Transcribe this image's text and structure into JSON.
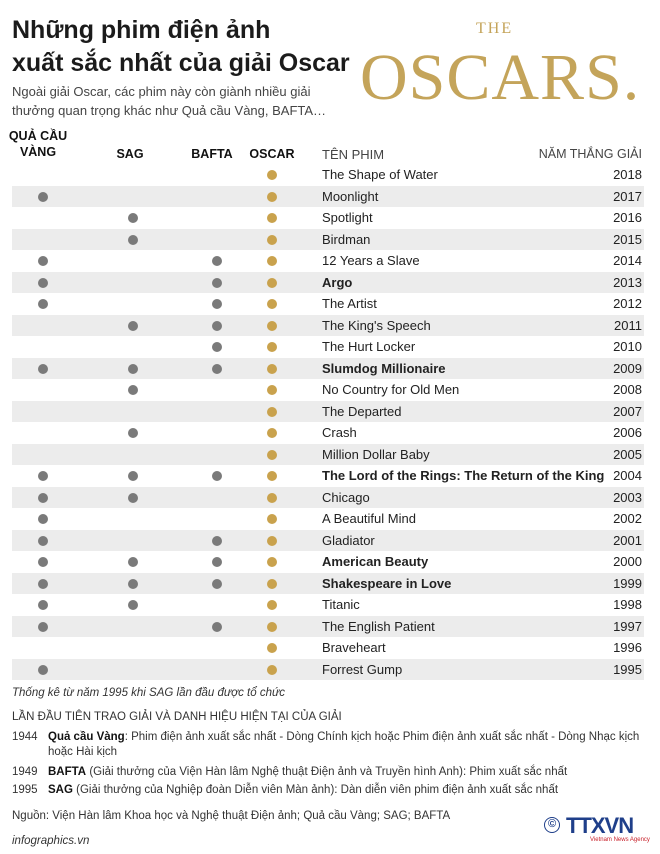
{
  "title_line1": "Những phim điện ảnh",
  "title_line2": "xuất sắc nhất của giải Oscar",
  "subtitle": "Ngoài giải Oscar, các phim này còn giành nhiều giải thưởng quan trọng khác như Quả cầu Vàng, BAFTA…",
  "logo": {
    "top": "THE",
    "word": "OSCARS."
  },
  "headers": {
    "golden_globe_l1": "QUẢ CẦU",
    "golden_globe_l2": "VÀNG",
    "sag": "SAG",
    "bafta": "BAFTA",
    "oscar": "OSCAR",
    "film": "TÊN PHIM",
    "year": "NĂM THẮNG GIẢI"
  },
  "colors": {
    "gold": "#c9a24d",
    "grey_dot": "#7a7a7a",
    "stripe": "#ececec"
  },
  "rows": [
    {
      "film": "The Shape of Water",
      "year": "2018",
      "gg": false,
      "sag": false,
      "bafta": false,
      "bold": false
    },
    {
      "film": "Moonlight",
      "year": "2017",
      "gg": true,
      "sag": false,
      "bafta": false,
      "bold": false
    },
    {
      "film": "Spotlight",
      "year": "2016",
      "gg": false,
      "sag": true,
      "bafta": false,
      "bold": false
    },
    {
      "film": "Birdman",
      "year": "2015",
      "gg": false,
      "sag": true,
      "bafta": false,
      "bold": false
    },
    {
      "film": "12 Years a Slave",
      "year": "2014",
      "gg": true,
      "sag": false,
      "bafta": true,
      "bold": false
    },
    {
      "film": "Argo",
      "year": "2013",
      "gg": true,
      "sag": false,
      "bafta": true,
      "bold": true
    },
    {
      "film": "The Artist",
      "year": "2012",
      "gg": true,
      "sag": false,
      "bafta": true,
      "bold": false
    },
    {
      "film": "The King's Speech",
      "year": "2011",
      "gg": false,
      "sag": true,
      "bafta": true,
      "bold": false
    },
    {
      "film": "The Hurt Locker",
      "year": "2010",
      "gg": false,
      "sag": false,
      "bafta": true,
      "bold": false
    },
    {
      "film": "Slumdog Millionaire",
      "year": "2009",
      "gg": true,
      "sag": true,
      "bafta": true,
      "bold": true
    },
    {
      "film": "No Country for Old Men",
      "year": "2008",
      "gg": false,
      "sag": true,
      "bafta": false,
      "bold": false
    },
    {
      "film": "The Departed",
      "year": "2007",
      "gg": false,
      "sag": false,
      "bafta": false,
      "bold": false
    },
    {
      "film": "Crash",
      "year": "2006",
      "gg": false,
      "sag": true,
      "bafta": false,
      "bold": false
    },
    {
      "film": "Million Dollar Baby",
      "year": "2005",
      "gg": false,
      "sag": false,
      "bafta": false,
      "bold": false
    },
    {
      "film": "The Lord of the Rings: The Return of the King",
      "year": "2004",
      "gg": true,
      "sag": true,
      "bafta": true,
      "bold": true
    },
    {
      "film": "Chicago",
      "year": "2003",
      "gg": true,
      "sag": true,
      "bafta": false,
      "bold": false
    },
    {
      "film": "A Beautiful Mind",
      "year": "2002",
      "gg": true,
      "sag": false,
      "bafta": false,
      "bold": false
    },
    {
      "film": "Gladiator",
      "year": "2001",
      "gg": true,
      "sag": false,
      "bafta": true,
      "bold": false
    },
    {
      "film": "American Beauty",
      "year": "2000",
      "gg": true,
      "sag": true,
      "bafta": true,
      "bold": true
    },
    {
      "film": "Shakespeare in Love",
      "year": "1999",
      "gg": true,
      "sag": true,
      "bafta": true,
      "bold": true
    },
    {
      "film": "Titanic",
      "year": "1998",
      "gg": true,
      "sag": true,
      "bafta": false,
      "bold": false
    },
    {
      "film": "The English Patient",
      "year": "1997",
      "gg": true,
      "sag": false,
      "bafta": true,
      "bold": false
    },
    {
      "film": "Braveheart",
      "year": "1996",
      "gg": false,
      "sag": false,
      "bafta": false,
      "bold": false
    },
    {
      "film": "Forrest Gump",
      "year": "1995",
      "gg": true,
      "sag": false,
      "bafta": false,
      "bold": false
    }
  ],
  "note": "Thống kê từ năm 1995 khi SAG lần đầu được tổ chức",
  "section_title": "LẦN ĐẦU TIÊN TRAO GIẢI VÀ DANH HIỆU HIỆN TẠI CỦA GIẢI",
  "awards": [
    {
      "year": "1944",
      "name": "Quả cầu Vàng",
      "desc": ": Phim điện ảnh xuất sắc nhất - Dòng Chính kịch hoặc Phim điện ảnh xuất sắc nhất - Dòng Nhạc kịch hoặc Hài kịch"
    },
    {
      "year": "1949",
      "name": "BAFTA",
      "desc": " (Giải thưởng của Viện Hàn lâm Nghệ thuật Điện ảnh và Truyền hình Anh): Phim xuất sắc nhất"
    },
    {
      "year": "1995",
      "name": "SAG",
      "desc": " (Giải thưởng của Nghiệp đoàn Diễn viên Màn ảnh): Dàn diễn viên phim điện ảnh xuất sắc nhất"
    }
  ],
  "source": "Nguồn: Viện Hàn lâm Khoa học và Nghệ thuật Điện ảnh; Quả cầu Vàng; SAG; BAFTA",
  "site": "infographics.vn",
  "brand": {
    "copyright": "©",
    "name": "TTXVN",
    "sub": "Vietnam News Agency"
  }
}
